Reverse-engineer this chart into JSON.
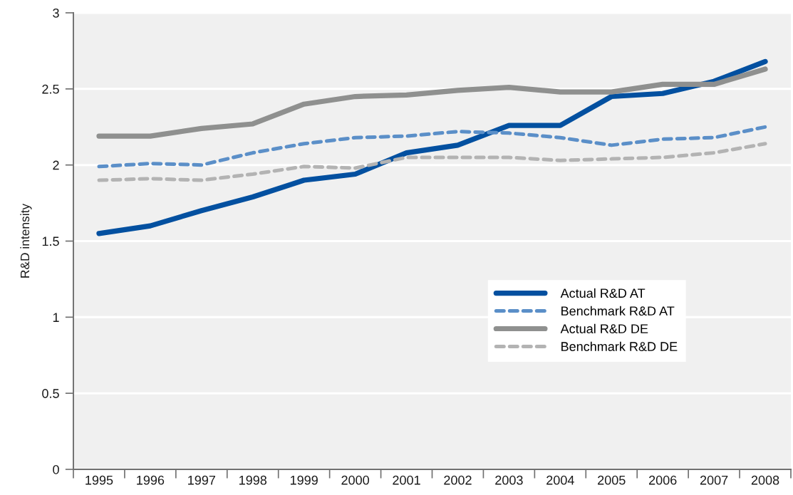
{
  "chart_data": {
    "type": "line",
    "ylabel": "R&D intensity",
    "categories": [
      "1995",
      "1996",
      "1997",
      "1998",
      "1999",
      "2000",
      "2001",
      "2002",
      "2003",
      "2004",
      "2005",
      "2006",
      "2007",
      "2008"
    ],
    "series": [
      {
        "name": "Actual R&D AT",
        "color": "#0350a0",
        "line_style": "solid",
        "values": [
          1.55,
          1.6,
          1.7,
          1.79,
          1.9,
          1.94,
          2.08,
          2.13,
          2.26,
          2.26,
          2.45,
          2.47,
          2.55,
          2.68
        ]
      },
      {
        "name": "Benchmark R&D AT",
        "color": "#5b8fc8",
        "line_style": "dashed",
        "values": [
          1.99,
          2.01,
          2.0,
          2.08,
          2.14,
          2.18,
          2.19,
          2.22,
          2.21,
          2.18,
          2.13,
          2.17,
          2.18,
          2.25
        ]
      },
      {
        "name": "Actual R&D DE",
        "color": "#8f908f",
        "line_style": "solid",
        "values": [
          2.19,
          2.19,
          2.24,
          2.27,
          2.4,
          2.45,
          2.46,
          2.49,
          2.51,
          2.48,
          2.48,
          2.53,
          2.53,
          2.63
        ]
      },
      {
        "name": "Benchmark R&D DE",
        "color": "#b3b3b3",
        "line_style": "dashed",
        "values": [
          1.9,
          1.91,
          1.9,
          1.94,
          1.99,
          1.98,
          2.05,
          2.05,
          2.05,
          2.03,
          2.04,
          2.05,
          2.08,
          2.14
        ]
      }
    ],
    "ylim": [
      0,
      3
    ],
    "yticks": [
      0,
      0.5,
      1,
      1.5,
      2,
      2.5,
      3
    ],
    "grid": "y",
    "legend": "right",
    "marker": "none"
  }
}
